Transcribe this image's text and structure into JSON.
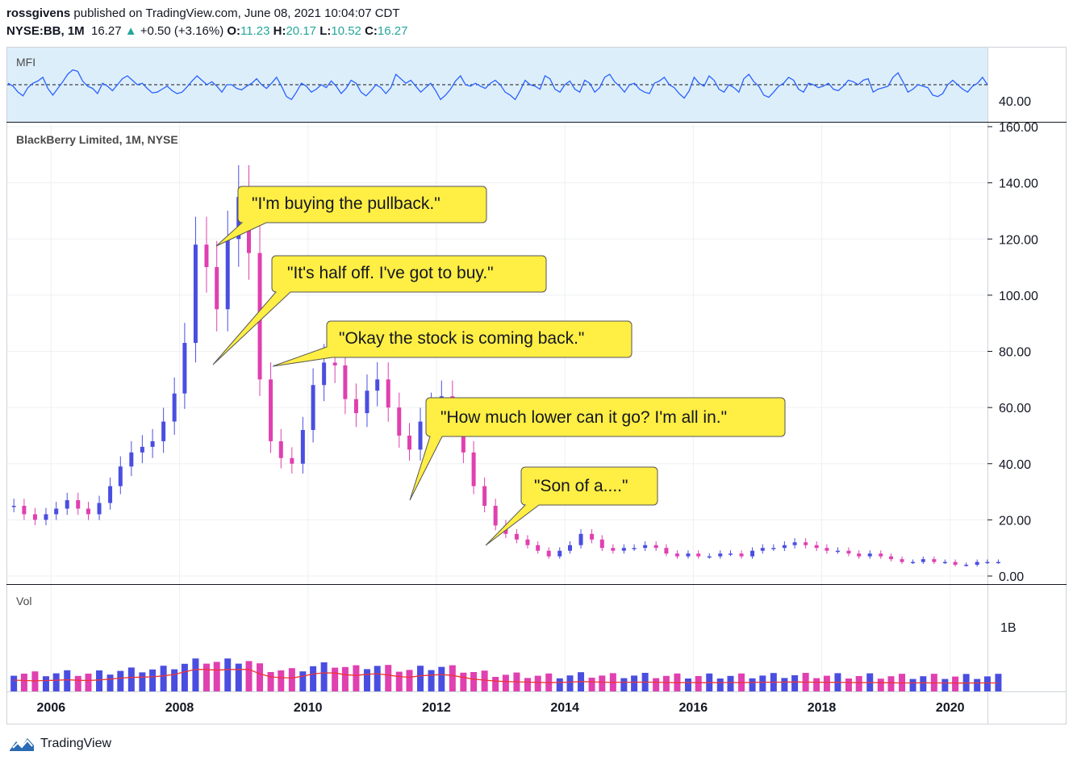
{
  "header": {
    "user": "rossgivens",
    "published": " published on TradingView.com, June 08, 2021 10:04:07 CDT",
    "symbol": "NYSE:BB, 1M",
    "last": "16.27",
    "change": "+0.50 (+3.16%)",
    "o_label": "O:",
    "o_val": "11.23",
    "h_label": "H:",
    "h_val": "20.17",
    "l_label": "L:",
    "l_val": "10.52",
    "c_label": "C:",
    "c_val": "16.27"
  },
  "footer": {
    "brand": "TradingView",
    "logo_icon": "tradingview-logo-icon"
  },
  "colors": {
    "up": "#4a4ee0",
    "down": "#e040b0",
    "mfi_line": "#2962ff",
    "mfi_fill": "#ddeefb",
    "vol_ma": "#ee3333",
    "callout_fill": "#ffee44",
    "callout_stroke": "#555555"
  },
  "chart_data": [
    {
      "type": "line",
      "title": "MFI",
      "y_ticks": [
        "40.00"
      ],
      "ylim": [
        0,
        100
      ],
      "band": [
        20,
        80
      ],
      "reference_line": 50,
      "values": [
        52,
        48,
        40,
        35,
        46,
        52,
        55,
        60,
        45,
        36,
        45,
        54,
        64,
        70,
        68,
        55,
        48,
        45,
        38,
        52,
        48,
        42,
        50,
        58,
        62,
        56,
        50,
        52,
        45,
        39,
        40,
        44,
        48,
        42,
        38,
        40,
        47,
        55,
        62,
        56,
        50,
        54,
        48,
        40,
        50,
        50,
        45,
        43,
        48,
        52,
        58,
        50,
        45,
        52,
        60,
        48,
        34,
        30,
        40,
        52,
        48,
        40,
        44,
        50,
        46,
        55,
        48,
        38,
        45,
        56,
        52,
        40,
        35,
        42,
        50,
        46,
        38,
        46,
        64,
        58,
        52,
        56,
        48,
        40,
        46,
        52,
        42,
        30,
        36,
        44,
        55,
        62,
        50,
        48,
        52,
        48,
        45,
        52,
        56,
        50,
        40,
        36,
        30,
        42,
        56,
        50,
        48,
        44,
        62,
        58,
        44,
        40,
        50,
        55,
        44,
        40,
        56,
        52,
        40,
        46,
        60,
        64,
        54,
        48,
        40,
        50,
        52,
        44,
        40,
        38,
        52,
        55,
        60,
        50,
        46,
        38,
        32,
        42,
        60,
        52,
        48,
        62,
        56,
        44,
        40,
        50,
        46,
        40,
        58,
        64,
        54,
        48,
        36,
        33,
        40,
        48,
        52,
        60,
        56,
        44,
        40,
        52,
        50,
        46,
        48,
        52,
        44,
        42,
        48,
        56,
        54,
        50,
        56,
        58,
        40,
        44,
        46,
        48,
        60,
        66,
        54,
        40,
        44,
        50,
        48,
        46,
        36,
        34,
        38,
        50,
        56,
        50,
        44,
        40,
        48,
        52,
        60,
        50
      ],
      "mfi_points": [
        [
          2005.33,
          56
        ],
        [
          2005.6,
          53
        ],
        [
          2005.9,
          38
        ],
        [
          2006.2,
          52
        ],
        [
          2006.6,
          42
        ],
        [
          2006.9,
          66
        ],
        [
          2007.3,
          56
        ],
        [
          2007.6,
          43
        ],
        [
          2007.9,
          58
        ],
        [
          2008.2,
          48
        ],
        [
          2008.5,
          40
        ],
        [
          2008.8,
          52
        ],
        [
          2009.1,
          38
        ],
        [
          2009.4,
          50
        ],
        [
          2009.7,
          62
        ],
        [
          2010.0,
          44
        ],
        [
          2010.3,
          54
        ],
        [
          2010.6,
          44
        ],
        [
          2010.9,
          56
        ],
        [
          2011.2,
          48
        ],
        [
          2011.5,
          36
        ],
        [
          2011.8,
          50
        ],
        [
          2012.1,
          42
        ],
        [
          2012.4,
          38
        ],
        [
          2012.7,
          60
        ],
        [
          2013.0,
          58
        ],
        [
          2013.3,
          42
        ],
        [
          2013.6,
          48
        ],
        [
          2013.9,
          34
        ],
        [
          2014.2,
          56
        ],
        [
          2014.5,
          40
        ],
        [
          2014.8,
          54
        ],
        [
          2015.1,
          46
        ],
        [
          2015.5,
          54
        ],
        [
          2015.9,
          36
        ],
        [
          2016.2,
          56
        ],
        [
          2016.5,
          48
        ],
        [
          2016.9,
          42
        ],
        [
          2017.2,
          56
        ],
        [
          2017.5,
          38
        ],
        [
          2017.9,
          52
        ],
        [
          2018.1,
          66
        ],
        [
          2018.5,
          42
        ],
        [
          2018.9,
          56
        ],
        [
          2019.2,
          38
        ],
        [
          2019.5,
          60
        ],
        [
          2019.8,
          34
        ],
        [
          2020.0,
          60
        ],
        [
          2020.3,
          40
        ],
        [
          2020.6,
          54
        ],
        [
          2020.9,
          46
        ]
      ]
    },
    {
      "type": "candlestick",
      "title": "BlackBerry Limited, 1M, NYSE",
      "xlabel": "",
      "ylabel": "",
      "x_ticks": [
        "2006",
        "2008",
        "2010",
        "2012",
        "2014",
        "2016",
        "2018",
        "2020"
      ],
      "y_ticks": [
        "0.00",
        "20.00",
        "40.00",
        "60.00",
        "80.00",
        "100.00",
        "120.00",
        "140.00",
        "160.00"
      ],
      "ylim": [
        0,
        160
      ],
      "xlim": [
        2005.33,
        2020.83
      ],
      "closes": [
        [
          2005.42,
          25
        ],
        [
          2005.58,
          22
        ],
        [
          2005.75,
          20
        ],
        [
          2005.92,
          22
        ],
        [
          2006.08,
          24
        ],
        [
          2006.25,
          27
        ],
        [
          2006.42,
          24
        ],
        [
          2006.58,
          22
        ],
        [
          2006.75,
          26
        ],
        [
          2006.92,
          32
        ],
        [
          2007.08,
          39
        ],
        [
          2007.25,
          44
        ],
        [
          2007.42,
          46
        ],
        [
          2007.58,
          48
        ],
        [
          2007.75,
          55
        ],
        [
          2007.92,
          65
        ],
        [
          2008.08,
          83
        ],
        [
          2008.25,
          118
        ],
        [
          2008.42,
          110
        ],
        [
          2008.58,
          95
        ],
        [
          2008.75,
          120
        ],
        [
          2008.92,
          135
        ],
        [
          2009.08,
          115
        ],
        [
          2009.25,
          70
        ],
        [
          2009.42,
          48
        ],
        [
          2009.58,
          42
        ],
        [
          2009.75,
          40
        ],
        [
          2009.92,
          52
        ],
        [
          2010.08,
          68
        ],
        [
          2010.25,
          76
        ],
        [
          2010.42,
          75
        ],
        [
          2010.58,
          63
        ],
        [
          2010.75,
          58
        ],
        [
          2010.92,
          66
        ],
        [
          2011.08,
          70
        ],
        [
          2011.25,
          60
        ],
        [
          2011.42,
          50
        ],
        [
          2011.58,
          45
        ],
        [
          2011.75,
          55
        ],
        [
          2011.92,
          60
        ],
        [
          2012.08,
          64
        ],
        [
          2012.25,
          58
        ],
        [
          2012.42,
          44
        ],
        [
          2012.58,
          32
        ],
        [
          2012.75,
          25
        ],
        [
          2012.92,
          18
        ],
        [
          2013.08,
          15
        ],
        [
          2013.25,
          13
        ],
        [
          2013.42,
          11
        ],
        [
          2013.58,
          9
        ],
        [
          2013.75,
          7
        ],
        [
          2013.92,
          9
        ],
        [
          2014.08,
          11
        ],
        [
          2014.25,
          15
        ],
        [
          2014.42,
          13
        ],
        [
          2014.58,
          10
        ],
        [
          2014.75,
          9
        ],
        [
          2014.92,
          10
        ],
        [
          2015.08,
          10
        ],
        [
          2015.25,
          11
        ],
        [
          2015.42,
          10
        ],
        [
          2015.58,
          8
        ],
        [
          2015.75,
          7
        ],
        [
          2015.92,
          8
        ],
        [
          2016.08,
          7
        ],
        [
          2016.25,
          7
        ],
        [
          2016.42,
          8
        ],
        [
          2016.58,
          8
        ],
        [
          2016.75,
          7
        ],
        [
          2016.92,
          9
        ],
        [
          2017.08,
          10
        ],
        [
          2017.25,
          10
        ],
        [
          2017.42,
          11
        ],
        [
          2017.58,
          12
        ],
        [
          2017.75,
          11
        ],
        [
          2017.92,
          10
        ],
        [
          2018.08,
          9
        ],
        [
          2018.25,
          9
        ],
        [
          2018.42,
          8
        ],
        [
          2018.58,
          7
        ],
        [
          2018.75,
          8
        ],
        [
          2018.92,
          7
        ],
        [
          2019.08,
          6
        ],
        [
          2019.25,
          5
        ],
        [
          2019.42,
          5
        ],
        [
          2019.58,
          6
        ],
        [
          2019.75,
          5
        ],
        [
          2019.92,
          5
        ],
        [
          2020.08,
          4
        ],
        [
          2020.25,
          4
        ],
        [
          2020.42,
          5
        ],
        [
          2020.58,
          5
        ],
        [
          2020.75,
          5
        ]
      ]
    },
    {
      "type": "bar",
      "title": "Vol",
      "y_ticks": [
        "1B"
      ],
      "ylim": [
        0,
        1.5
      ],
      "unit": "B"
    }
  ],
  "callouts": [
    {
      "text": "\"I'm buying the pullback.\""
    },
    {
      "text": "\"It's half off. I've got to buy.\""
    },
    {
      "text": "\"Okay the stock is coming back.\""
    },
    {
      "text": "\"How much lower can it go? I'm all in.\""
    },
    {
      "text": "\"Son of a....\""
    }
  ]
}
